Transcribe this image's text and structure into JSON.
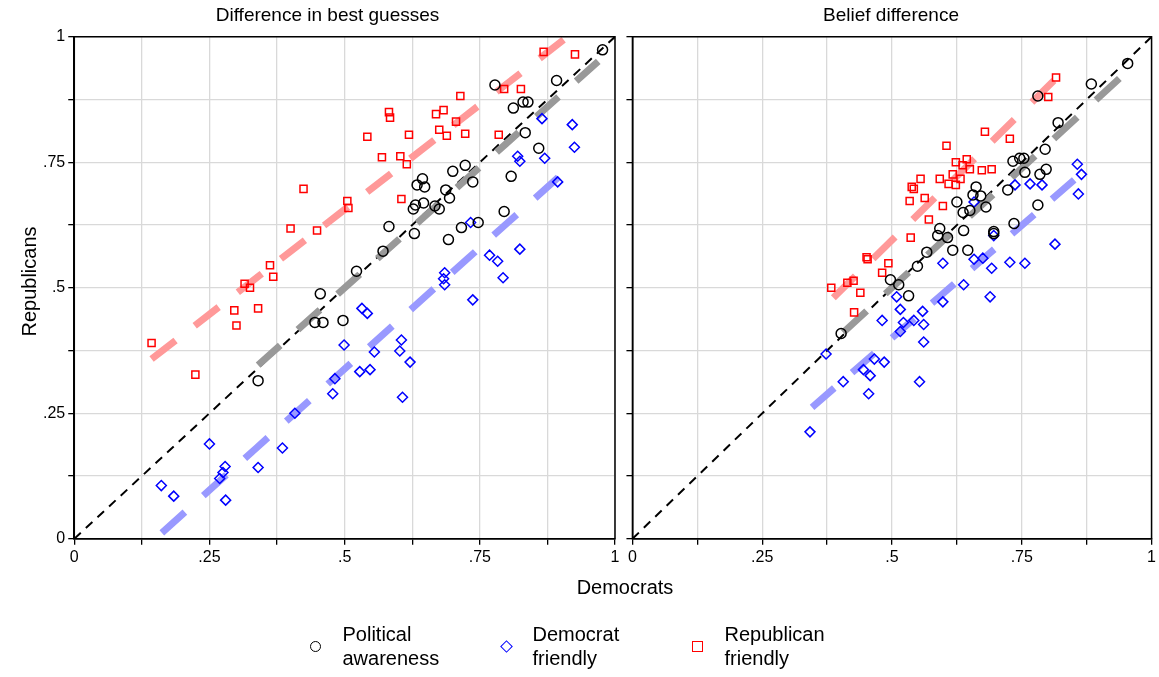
{
  "chart_data": [
    {
      "type": "scatter",
      "title": "Difference in best guesses",
      "xlabel": "Democrats",
      "ylabel": "Republicans",
      "legend": "bottom",
      "grid": true,
      "xlim": [
        0,
        1
      ],
      "ylim": [
        0,
        1
      ],
      "xticks": [
        {
          "value": 0,
          "label": "0"
        },
        {
          "value": 0.125,
          "label": null
        },
        {
          "value": 0.25,
          "label": ".25"
        },
        {
          "value": 0.375,
          "label": null
        },
        {
          "value": 0.5,
          "label": ".5"
        },
        {
          "value": 0.625,
          "label": null
        },
        {
          "value": 0.75,
          "label": ".75"
        },
        {
          "value": 0.875,
          "label": null
        },
        {
          "value": 1,
          "label": "1"
        }
      ],
      "yticks": [
        {
          "value": 0,
          "label": "0"
        },
        {
          "value": 0.125,
          "label": null
        },
        {
          "value": 0.25,
          "label": ".25"
        },
        {
          "value": 0.375,
          "label": null
        },
        {
          "value": 0.5,
          "label": ".5"
        },
        {
          "value": 0.625,
          "label": null
        },
        {
          "value": 0.75,
          "label": ".75"
        },
        {
          "value": 0.875,
          "label": null
        },
        {
          "value": 1,
          "label": "1"
        }
      ],
      "series": [
        {
          "name": "Political awareness",
          "color": "#000000",
          "marker": "circle",
          "x": [
            0.977,
            0.892,
            0.778,
            0.812,
            0.83,
            0.839,
            0.834,
            0.859,
            0.723,
            0.7,
            0.737,
            0.808,
            0.644,
            0.634,
            0.648,
            0.687,
            0.694,
            0.631,
            0.627,
            0.646,
            0.667,
            0.675,
            0.795,
            0.582,
            0.629,
            0.747,
            0.716,
            0.692,
            0.571,
            0.522,
            0.455,
            0.445,
            0.46,
            0.497,
            0.34
          ],
          "values": [
            0.974,
            0.913,
            0.904,
            0.858,
            0.87,
            0.87,
            0.809,
            0.778,
            0.744,
            0.732,
            0.711,
            0.722,
            0.717,
            0.705,
            0.701,
            0.695,
            0.679,
            0.665,
            0.657,
            0.669,
            0.663,
            0.657,
            0.652,
            0.622,
            0.608,
            0.63,
            0.62,
            0.596,
            0.573,
            0.533,
            0.488,
            0.431,
            0.431,
            0.435,
            0.315
          ]
        },
        {
          "name": "Democrat friendly",
          "color": "#0000ff",
          "marker": "diamond",
          "x": [
            0.865,
            0.921,
            0.925,
            0.82,
            0.824,
            0.87,
            0.894,
            0.733,
            0.768,
            0.783,
            0.824,
            0.793,
            0.685,
            0.683,
            0.685,
            0.737,
            0.532,
            0.542,
            0.499,
            0.605,
            0.555,
            0.602,
            0.621,
            0.528,
            0.547,
            0.482,
            0.478,
            0.607,
            0.408,
            0.25,
            0.385,
            0.279,
            0.275,
            0.269,
            0.34,
            0.161,
            0.184,
            0.28
          ],
          "values": [
            0.837,
            0.825,
            0.78,
            0.762,
            0.752,
            0.758,
            0.711,
            0.63,
            0.565,
            0.553,
            0.577,
            0.52,
            0.53,
            0.518,
            0.506,
            0.476,
            0.459,
            0.449,
            0.386,
            0.396,
            0.372,
            0.374,
            0.352,
            0.333,
            0.337,
            0.319,
            0.289,
            0.282,
            0.25,
            0.189,
            0.181,
            0.144,
            0.132,
            0.12,
            0.142,
            0.106,
            0.085,
            0.077
          ]
        },
        {
          "name": "Republican friendly",
          "color": "#ff0000",
          "marker": "square",
          "x": [
            0.868,
            0.926,
            0.795,
            0.826,
            0.714,
            0.582,
            0.584,
            0.683,
            0.669,
            0.706,
            0.675,
            0.689,
            0.723,
            0.785,
            0.542,
            0.619,
            0.569,
            0.603,
            0.615,
            0.424,
            0.605,
            0.505,
            0.507,
            0.4,
            0.449,
            0.362,
            0.368,
            0.315,
            0.325,
            0.296,
            0.34,
            0.3,
            0.143,
            0.224
          ],
          "values": [
            0.97,
            0.965,
            0.896,
            0.896,
            0.882,
            0.85,
            0.839,
            0.854,
            0.846,
            0.831,
            0.815,
            0.803,
            0.807,
            0.805,
            0.801,
            0.805,
            0.76,
            0.762,
            0.746,
            0.697,
            0.677,
            0.673,
            0.659,
            0.618,
            0.614,
            0.545,
            0.522,
            0.508,
            0.5,
            0.455,
            0.459,
            0.425,
            0.39,
            0.327
          ]
        },
        {
          "type": "line",
          "color": "#999999",
          "line_style": "dashed",
          "x": [
            0.34,
            0.969
          ],
          "values": [
            0.346,
            0.951
          ]
        },
        {
          "type": "line",
          "color": "#9999ff",
          "line_style": "dashed",
          "x": [
            0.162,
            0.895
          ],
          "values": [
            0.012,
            0.72
          ]
        },
        {
          "type": "line",
          "color": "#ff9999",
          "line_style": "dashed",
          "x": [
            0.143,
            0.905
          ],
          "values": [
            0.358,
            0.994
          ]
        },
        {
          "type": "line",
          "color": "#000000",
          "line_style": "dashed",
          "x": [
            0,
            1
          ],
          "values": [
            0,
            1
          ]
        }
      ]
    },
    {
      "type": "scatter",
      "title": "Belief difference",
      "grid": true,
      "tick_labels": "x",
      "xlim": [
        0,
        1
      ],
      "ylim": [
        0,
        1
      ],
      "xticks": [
        0,
        {
          "value": 0.125,
          "label": null
        },
        {
          "value": 0.25,
          "label": ".25"
        },
        {
          "value": 0.375,
          "label": null
        },
        {
          "value": 0.5,
          "label": ".5"
        },
        {
          "value": 0.625,
          "label": null
        },
        {
          "value": 0.75,
          "label": ".75"
        },
        {
          "value": 0.875,
          "label": null
        },
        1
      ],
      "yticks": [
        {
          "value": 0,
          "label": null
        },
        {
          "value": 0.125,
          "label": null
        },
        {
          "value": 0.25,
          "label": null
        },
        {
          "value": 0.375,
          "label": null
        },
        {
          "value": 0.5,
          "label": null
        },
        {
          "value": 0.625,
          "label": null
        },
        {
          "value": 0.75,
          "label": null
        },
        {
          "value": 0.875,
          "label": null
        },
        {
          "value": 1,
          "label": null
        }
      ],
      "series": [
        {
          "color": "#000000",
          "marker": "circle",
          "x": [
            0.954,
            0.884,
            0.781,
            0.82,
            0.795,
            0.733,
            0.746,
            0.754,
            0.756,
            0.797,
            0.785,
            0.723,
            0.662,
            0.656,
            0.671,
            0.681,
            0.625,
            0.637,
            0.65,
            0.781,
            0.735,
            0.696,
            0.696,
            0.638,
            0.592,
            0.588,
            0.607,
            0.617,
            0.646,
            0.567,
            0.549,
            0.497,
            0.513,
            0.532,
            0.402
          ],
          "values": [
            0.947,
            0.906,
            0.882,
            0.829,
            0.776,
            0.752,
            0.758,
            0.758,
            0.73,
            0.736,
            0.726,
            0.695,
            0.701,
            0.685,
            0.683,
            0.661,
            0.671,
            0.65,
            0.654,
            0.665,
            0.628,
            0.612,
            0.608,
            0.614,
            0.618,
            0.604,
            0.6,
            0.575,
            0.575,
            0.571,
            0.543,
            0.516,
            0.506,
            0.484,
            0.409
          ]
        },
        {
          "color": "#0000ff",
          "marker": "diamond",
          "x": [
            0.857,
            0.865,
            0.859,
            0.737,
            0.766,
            0.789,
            0.658,
            0.696,
            0.814,
            0.658,
            0.675,
            0.598,
            0.692,
            0.727,
            0.756,
            0.638,
            0.689,
            0.509,
            0.516,
            0.559,
            0.598,
            0.481,
            0.522,
            0.542,
            0.561,
            0.516,
            0.561,
            0.373,
            0.466,
            0.485,
            0.445,
            0.458,
            0.406,
            0.553,
            0.455,
            0.342
          ],
          "values": [
            0.746,
            0.726,
            0.687,
            0.705,
            0.707,
            0.705,
            0.671,
            0.604,
            0.587,
            0.557,
            0.559,
            0.549,
            0.539,
            0.551,
            0.549,
            0.506,
            0.482,
            0.482,
            0.457,
            0.453,
            0.472,
            0.435,
            0.431,
            0.435,
            0.427,
            0.413,
            0.392,
            0.368,
            0.358,
            0.352,
            0.337,
            0.325,
            0.313,
            0.313,
            0.289,
            0.213
          ]
        },
        {
          "color": "#ff0000",
          "marker": "square",
          "x": [
            0.816,
            0.801,
            0.679,
            0.727,
            0.605,
            0.623,
            0.644,
            0.636,
            0.65,
            0.673,
            0.692,
            0.592,
            0.617,
            0.632,
            0.609,
            0.623,
            0.555,
            0.538,
            0.542,
            0.563,
            0.534,
            0.598,
            0.571,
            0.536,
            0.451,
            0.453,
            0.493,
            0.481,
            0.383,
            0.414,
            0.426,
            0.439,
            0.427
          ],
          "values": [
            0.919,
            0.88,
            0.811,
            0.797,
            0.783,
            0.75,
            0.756,
            0.744,
            0.736,
            0.734,
            0.736,
            0.717,
            0.726,
            0.717,
            0.707,
            0.705,
            0.717,
            0.701,
            0.697,
            0.679,
            0.673,
            0.663,
            0.636,
            0.6,
            0.561,
            0.557,
            0.549,
            0.53,
            0.5,
            0.51,
            0.514,
            0.49,
            0.451
          ]
        },
        {
          "type": "line",
          "color": "#999999",
          "line_style": "dashed",
          "x": [
            0.406,
            0.938
          ],
          "values": [
            0.411,
            0.917
          ]
        },
        {
          "type": "line",
          "color": "#9999ff",
          "line_style": "dashed",
          "x": [
            0.346,
            0.851
          ],
          "values": [
            0.262,
            0.715
          ]
        },
        {
          "type": "line",
          "color": "#ff9999",
          "line_style": "dashed",
          "x": [
            0.387,
            0.812
          ],
          "values": [
            0.48,
            0.913
          ]
        },
        {
          "type": "line",
          "color": "#000000",
          "line_style": "dashed",
          "x": [
            0,
            1
          ],
          "values": [
            0,
            1
          ]
        }
      ]
    }
  ]
}
